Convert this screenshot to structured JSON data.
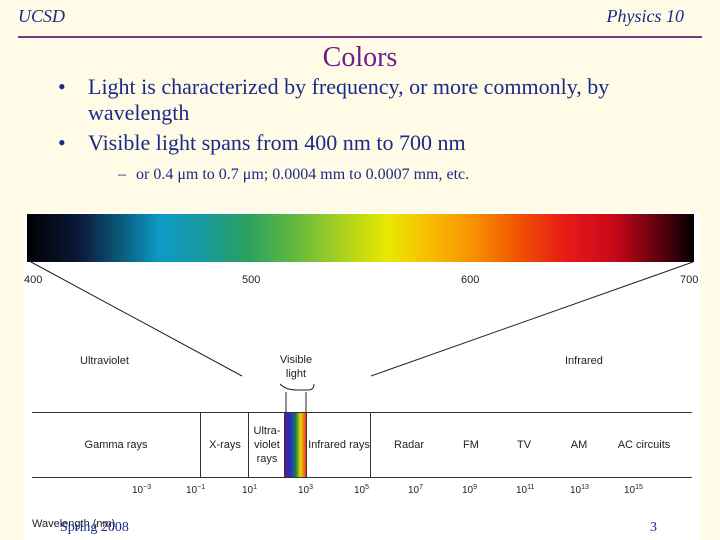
{
  "header": {
    "left": "UCSD",
    "right": "Physics 10"
  },
  "title": "Colors",
  "bullets": [
    "Light is characterized by frequency, or more commonly, by wavelength",
    "Visible light spans from 400 nm to 700 nm"
  ],
  "sub_bullet": "or 0.4 μm to 0.7 μm; 0.0004 mm to 0.0007 mm, etc.",
  "diagram": {
    "ticks": [
      "400",
      "500",
      "600",
      "700"
    ],
    "regions": {
      "ultraviolet": "Ultraviolet",
      "visible": "Visible light",
      "infrared": "Infrared"
    },
    "bands": [
      "Gamma rays",
      "X-rays",
      "Ultra-violet rays",
      "",
      "Infrared rays",
      "Radar",
      "FM",
      "TV",
      "AM",
      "AC circuits"
    ],
    "exponents": [
      "−3",
      "−1",
      "1",
      "3",
      "5",
      "7",
      "9",
      "11",
      "13",
      "15"
    ],
    "exponent_base": "10",
    "axis_label": "Wavelength (nm)"
  },
  "footer": {
    "left": "Spring 2008",
    "page": "3"
  }
}
